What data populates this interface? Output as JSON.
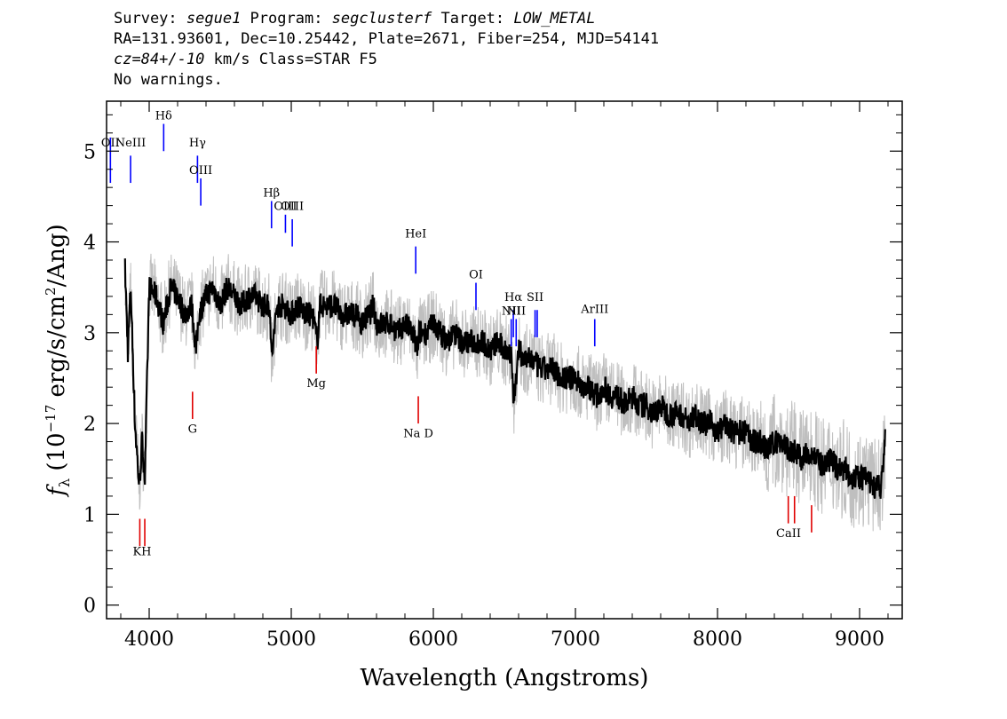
{
  "header": {
    "line1": {
      "survey_label": "Survey: ",
      "survey": "segue1",
      "program_label": " Program: ",
      "program": "segclusterf",
      "target_label": " Target: ",
      "target": "LOW_METAL"
    },
    "line2": "RA=131.93601, Dec=10.25442, Plate=2671, Fiber=254, MJD=54141",
    "line3": {
      "cz": "cz=84+/-10",
      "rest": " km/s Class=STAR F5"
    },
    "line4": "No warnings."
  },
  "chart_data": {
    "type": "line",
    "xlabel": "Wavelength (Angstroms)",
    "ylabel": "f_λ (10^-17 erg/s/cm^2/Ang)",
    "ylabel_parts": {
      "f": "f",
      "lambda": "λ",
      "open": " (10",
      "exp1": "−17",
      "mid": " erg/s/cm",
      "exp2": "2",
      "close": "/Ang)"
    },
    "xlim": [
      3700,
      9300
    ],
    "ylim": [
      -0.15,
      5.55
    ],
    "xticks": [
      4000,
      5000,
      6000,
      7000,
      8000,
      9000
    ],
    "yticks": [
      0,
      1,
      2,
      3,
      4,
      5
    ],
    "colors": {
      "flux": "#000000",
      "error_band": "#bfbfbf",
      "emission": "#0000ff",
      "absorption": "#e00000"
    },
    "series": [
      {
        "role": "flux",
        "x": [
          3830,
          3850,
          3870,
          3900,
          3930,
          3950,
          3970,
          4000,
          4050,
          4100,
          4150,
          4200,
          4250,
          4300,
          4330,
          4350,
          4400,
          4450,
          4500,
          4550,
          4600,
          4650,
          4700,
          4750,
          4800,
          4850,
          4861,
          4900,
          4950,
          5000,
          5050,
          5100,
          5150,
          5183,
          5200,
          5250,
          5300,
          5350,
          5400,
          5450,
          5500,
          5550,
          5577,
          5600,
          5650,
          5700,
          5750,
          5800,
          5850,
          5893,
          5900,
          5950,
          6000,
          6050,
          6100,
          6150,
          6200,
          6250,
          6300,
          6350,
          6400,
          6450,
          6500,
          6550,
          6563,
          6600,
          6650,
          6700,
          6750,
          6800,
          6850,
          6900,
          6950,
          7000,
          7050,
          7100,
          7150,
          7200,
          7250,
          7300,
          7350,
          7400,
          7450,
          7500,
          7550,
          7600,
          7650,
          7700,
          7750,
          7800,
          7850,
          7900,
          7950,
          8000,
          8050,
          8100,
          8150,
          8200,
          8250,
          8300,
          8350,
          8400,
          8450,
          8500,
          8550,
          8600,
          8650,
          8700,
          8750,
          8800,
          8850,
          8900,
          8950,
          9000,
          9050,
          9100,
          9150,
          9180
        ],
        "y": [
          3.7,
          2.8,
          3.5,
          2.0,
          1.3,
          1.8,
          1.4,
          3.5,
          3.4,
          3.1,
          3.5,
          3.4,
          3.2,
          3.3,
          2.8,
          3.2,
          3.4,
          3.5,
          3.3,
          3.5,
          3.4,
          3.3,
          3.4,
          3.4,
          3.3,
          3.3,
          2.7,
          3.3,
          3.3,
          3.2,
          3.3,
          3.2,
          3.2,
          2.9,
          3.3,
          3.3,
          3.3,
          3.2,
          3.2,
          3.2,
          3.1,
          3.2,
          3.3,
          3.1,
          3.1,
          3.1,
          3.0,
          3.1,
          3.0,
          2.8,
          3.0,
          3.0,
          3.1,
          3.0,
          2.9,
          3.0,
          2.9,
          2.9,
          2.9,
          2.9,
          2.8,
          2.9,
          2.8,
          2.8,
          2.2,
          2.8,
          2.7,
          2.7,
          2.6,
          2.6,
          2.6,
          2.5,
          2.5,
          2.5,
          2.4,
          2.4,
          2.3,
          2.4,
          2.3,
          2.3,
          2.2,
          2.3,
          2.2,
          2.2,
          2.1,
          2.2,
          2.1,
          2.1,
          2.1,
          2.0,
          2.1,
          2.0,
          2.0,
          1.9,
          2.0,
          1.9,
          1.9,
          1.9,
          1.8,
          1.8,
          1.7,
          1.8,
          1.8,
          1.7,
          1.7,
          1.6,
          1.7,
          1.6,
          1.5,
          1.6,
          1.5,
          1.5,
          1.4,
          1.4,
          1.4,
          1.3,
          1.3,
          1.8
        ]
      }
    ],
    "emission_lines": [
      {
        "label": "OII",
        "x": 3727,
        "y_top": 5.15,
        "y_bottom": 4.65,
        "label_y": 5.05
      },
      {
        "label": "NeIII",
        "x": 3869,
        "y_top": 4.95,
        "y_bottom": 4.65,
        "label_y": 5.05
      },
      {
        "label": "Hδ",
        "x": 4102,
        "y_top": 5.3,
        "y_bottom": 5.0,
        "label_y": 5.35
      },
      {
        "label": "Hγ",
        "x": 4340,
        "y_top": 4.95,
        "y_bottom": 4.65,
        "label_y": 5.05
      },
      {
        "label": "OIII",
        "x": 4363,
        "y_top": 4.7,
        "y_bottom": 4.4,
        "label_y": 4.75
      },
      {
        "label": "Hβ",
        "x": 4861,
        "y_top": 4.45,
        "y_bottom": 4.15,
        "label_y": 4.5
      },
      {
        "label": "OIII",
        "x": 4959,
        "y_top": 4.3,
        "y_bottom": 4.1,
        "label_y": 4.35
      },
      {
        "label": "OIII",
        "x": 5007,
        "y_top": 4.25,
        "y_bottom": 3.95,
        "label_y": 4.35
      },
      {
        "label": "HeI",
        "x": 5876,
        "y_top": 3.95,
        "y_bottom": 3.65,
        "label_y": 4.05
      },
      {
        "label": "OI",
        "x": 6300,
        "y_top": 3.55,
        "y_bottom": 3.25,
        "label_y": 3.6
      },
      {
        "label": "NII",
        "x": 6548,
        "y_top": 3.15,
        "y_bottom": 2.85,
        "label_y": 3.2
      },
      {
        "label": "Hα",
        "x": 6563,
        "y_top": 3.25,
        "y_bottom": 2.95,
        "label_y": 3.35
      },
      {
        "label": "NII",
        "x": 6583,
        "y_top": 3.15,
        "y_bottom": 2.85,
        "label_y": 3.2
      },
      {
        "label": "SII",
        "x": 6716,
        "y_top": 3.25,
        "y_bottom": 2.95,
        "label_y": 3.35
      },
      {
        "label": "SII",
        "x": 6731,
        "y_top": 3.25,
        "y_bottom": 2.95,
        "label_y": 3.35
      },
      {
        "label": "ArIII",
        "x": 7136,
        "y_top": 3.15,
        "y_bottom": 2.85,
        "label_y": 3.22
      }
    ],
    "absorption_lines": [
      {
        "label": "K",
        "x": 3934,
        "y_top": 0.95,
        "y_bottom": 0.65,
        "label_y": 0.55
      },
      {
        "label": "H",
        "x": 3969,
        "y_top": 0.95,
        "y_bottom": 0.65,
        "label_y": 0.55
      },
      {
        "label": "G",
        "x": 4305,
        "y_top": 2.35,
        "y_bottom": 2.05,
        "label_y": 1.9
      },
      {
        "label": "Mg",
        "x": 5176,
        "y_top": 2.85,
        "y_bottom": 2.55,
        "label_y": 2.4
      },
      {
        "label": "Na D",
        "x": 5894,
        "y_top": 2.3,
        "y_bottom": 2.0,
        "label_y": 1.85
      },
      {
        "label": "CaII",
        "x": 8498,
        "y_top": 1.2,
        "y_bottom": 0.9,
        "label_y": 0.75
      },
      {
        "label": "CaII",
        "x": 8542,
        "y_top": 1.2,
        "y_bottom": 0.9,
        "label_y": 0.75
      },
      {
        "label": "CaII",
        "x": 8662,
        "y_top": 1.1,
        "y_bottom": 0.8,
        "label_y": 0.75
      }
    ],
    "line_label_groups": {
      "KH": {
        "text": "KH",
        "x": 3950,
        "y": 0.55
      },
      "CaII": {
        "text": "CaII",
        "x": 8500,
        "y": 0.75
      }
    }
  }
}
